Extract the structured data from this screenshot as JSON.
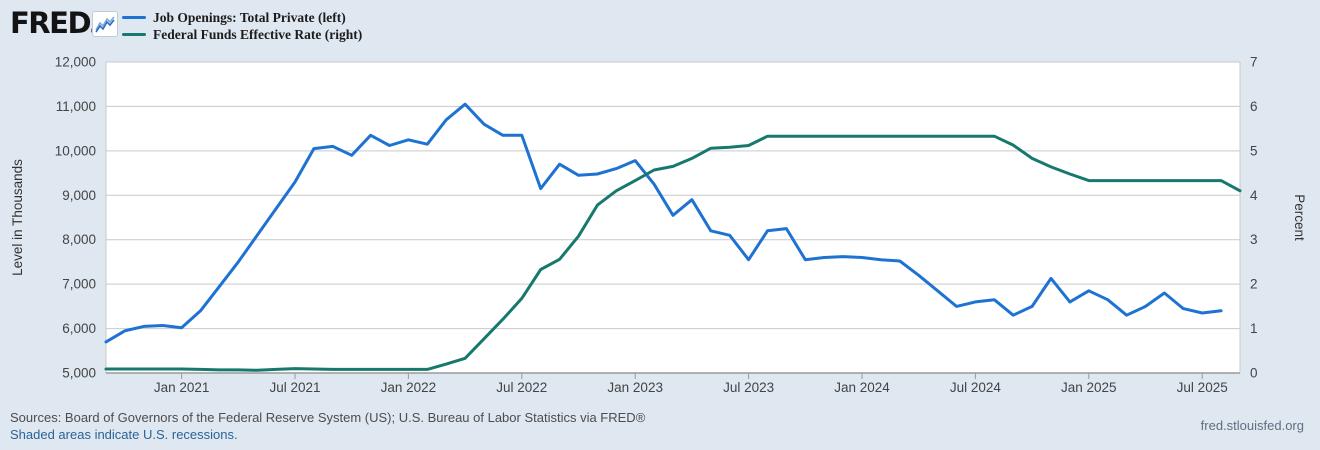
{
  "header": {
    "logo_text": "FRED",
    "logo_mark": "®",
    "legend": [
      {
        "label": "Job Openings: Total Private (left)",
        "color": "#1e72d2"
      },
      {
        "label": "Federal Funds Effective Rate (right)",
        "color": "#17796d"
      }
    ]
  },
  "footer": {
    "sources_line": "Sources: Board of Governors of the Federal Reserve System (US); U.S. Bureau of Labor Statistics via FRED®",
    "recessions_line": "Shaded areas indicate U.S. recessions.",
    "site_url": "fred.stlouisfed.org"
  },
  "colors": {
    "page_background": "#dfe7f1",
    "plot_background": "#ffffff",
    "gridline": "#c9c9c9",
    "axis_line": "#9a9a9a",
    "tick_text": "#444444",
    "axis_title_text": "#333333",
    "series_blue": "#1e72d2",
    "series_green": "#17796d"
  },
  "chart_data": {
    "type": "line",
    "x_start_month": "2020-09",
    "x_months_span": 60,
    "x_ticks": [
      {
        "i": 4,
        "label": "Jan 2021"
      },
      {
        "i": 10,
        "label": "Jul 2021"
      },
      {
        "i": 16,
        "label": "Jan 2022"
      },
      {
        "i": 22,
        "label": "Jul 2022"
      },
      {
        "i": 28,
        "label": "Jan 2023"
      },
      {
        "i": 34,
        "label": "Jul 2023"
      },
      {
        "i": 40,
        "label": "Jan 2024"
      },
      {
        "i": 46,
        "label": "Jul 2024"
      },
      {
        "i": 52,
        "label": "Jan 2025"
      },
      {
        "i": 58,
        "label": "Jul 2025"
      }
    ],
    "left_axis": {
      "label": "Level in Thousands",
      "min": 5000,
      "max": 12000,
      "tick_labels_top_to_bottom": [
        "12,000",
        "11,000",
        "10,000",
        "9,000",
        "8,000",
        "7,000",
        "6,000",
        "5,000"
      ]
    },
    "right_axis": {
      "label": "Percent",
      "min": 0,
      "max": 7,
      "tick_labels_top_to_bottom": [
        "7",
        "6",
        "5",
        "4",
        "3",
        "2",
        "1",
        "0"
      ]
    },
    "grid": true,
    "legend_position": "top-left",
    "series": [
      {
        "name": "Job Openings: Total Private (left)",
        "axis": "left",
        "color": "#1e72d2",
        "start_month": "2020-09",
        "values": [
          5700,
          5950,
          6050,
          6070,
          6020,
          6400,
          6950,
          7500,
          8100,
          8700,
          9300,
          10050,
          10100,
          9900,
          10350,
          10120,
          10250,
          10150,
          10700,
          11050,
          10600,
          10350,
          10350,
          9150,
          9700,
          9450,
          9480,
          9600,
          9780,
          9250,
          8550,
          8900,
          8200,
          8100,
          7550,
          8200,
          8250,
          7550,
          7600,
          7620,
          7600,
          7550,
          7520,
          7200,
          6850,
          6500,
          6600,
          6650,
          6300,
          6500,
          7130,
          6600,
          6850,
          6650,
          6300,
          6500,
          6800,
          6450,
          6350,
          6400
        ]
      },
      {
        "name": "Federal Funds Effective Rate (right)",
        "axis": "right",
        "color": "#17796d",
        "start_month": "2020-09",
        "values": [
          0.09,
          0.09,
          0.09,
          0.09,
          0.09,
          0.08,
          0.07,
          0.07,
          0.06,
          0.08,
          0.1,
          0.09,
          0.08,
          0.08,
          0.08,
          0.08,
          0.08,
          0.08,
          0.2,
          0.33,
          0.77,
          1.21,
          1.68,
          2.33,
          2.56,
          3.08,
          3.78,
          4.1,
          4.33,
          4.57,
          4.65,
          4.83,
          5.06,
          5.08,
          5.12,
          5.33,
          5.33,
          5.33,
          5.33,
          5.33,
          5.33,
          5.33,
          5.33,
          5.33,
          5.33,
          5.33,
          5.33,
          5.33,
          5.13,
          4.83,
          4.64,
          4.48,
          4.33,
          4.33,
          4.33,
          4.33,
          4.33,
          4.33,
          4.33,
          4.33,
          4.1
        ]
      }
    ]
  }
}
